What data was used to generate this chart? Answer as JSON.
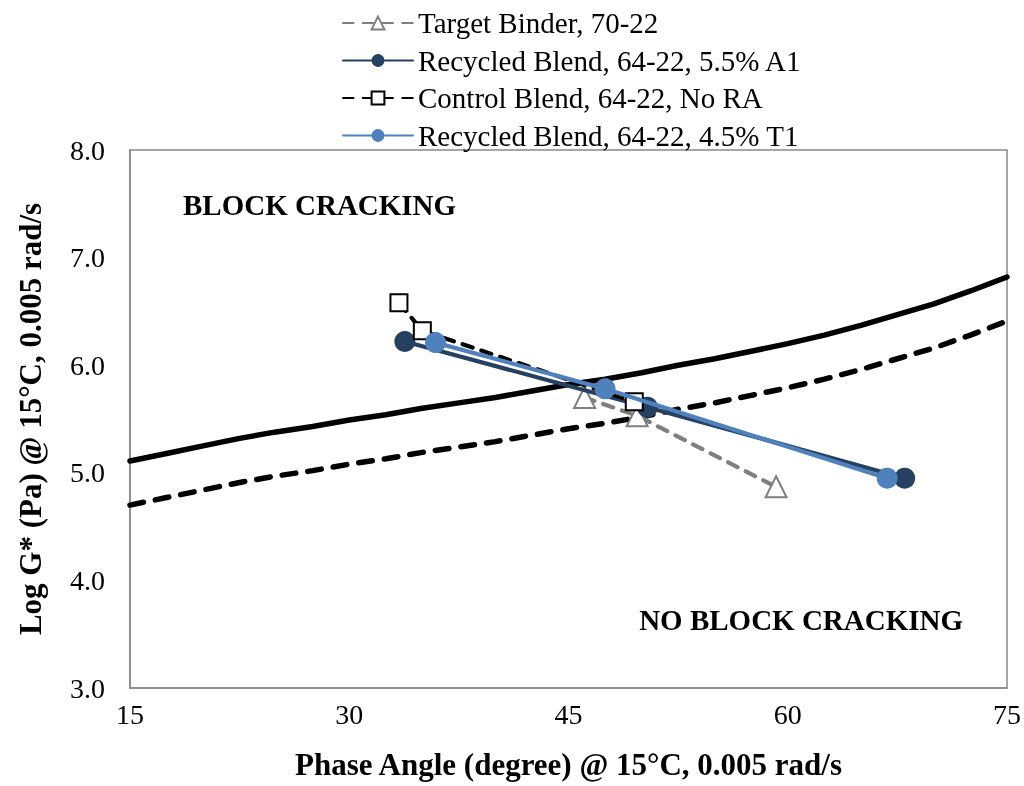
{
  "chart_data": {
    "type": "line",
    "xlabel": "Phase Angle (degree) @ 15°C, 0.005 rad/s",
    "ylabel": "Log G* (Pa) @ 15°C, 0.005 rad/s",
    "xlim": [
      15,
      75
    ],
    "xticks": [
      15,
      30,
      45,
      60,
      75
    ],
    "ylim": [
      3,
      8
    ],
    "yticks": [
      {
        "value": 3,
        "label": "3.0"
      },
      {
        "value": 4,
        "label": "4.0"
      },
      {
        "value": 5,
        "label": "5.0"
      },
      {
        "value": 6,
        "label": "6.0"
      },
      {
        "value": 7,
        "label": "7.0"
      },
      {
        "value": 8,
        "label": "8.0"
      }
    ],
    "grid": false,
    "legend": "top",
    "annotations": [
      "BLOCK CRACKING",
      "NO BLOCK CRACKING"
    ],
    "series": [
      {
        "color": "#000000",
        "marker": "none",
        "line_style": "solid",
        "x": [
          15,
          17.5,
          20,
          22.5,
          25,
          27.5,
          30,
          32.5,
          35,
          37.5,
          40,
          42.5,
          45,
          47.5,
          50,
          52.5,
          55,
          57.5,
          60,
          62.5,
          65,
          67.5,
          70,
          72.5,
          75
        ],
        "values": [
          5.11,
          5.18,
          5.25,
          5.32,
          5.38,
          5.43,
          5.49,
          5.54,
          5.6,
          5.65,
          5.7,
          5.76,
          5.82,
          5.87,
          5.93,
          6.0,
          6.06,
          6.13,
          6.2,
          6.28,
          6.37,
          6.47,
          6.57,
          6.69,
          6.82
        ]
      },
      {
        "color": "#000000",
        "marker": "none",
        "line_style": "dashed",
        "x": [
          15,
          17.5,
          20,
          22.5,
          25,
          27.5,
          30,
          32.5,
          35,
          37.5,
          40,
          42.5,
          45,
          47.5,
          50,
          52.5,
          55,
          57.5,
          60,
          62.5,
          65,
          67.5,
          70,
          72.5,
          75
        ],
        "values": [
          4.7,
          4.77,
          4.84,
          4.91,
          4.97,
          5.02,
          5.08,
          5.13,
          5.19,
          5.24,
          5.29,
          5.35,
          5.41,
          5.46,
          5.52,
          5.59,
          5.65,
          5.72,
          5.79,
          5.87,
          5.96,
          6.06,
          6.16,
          6.28,
          6.41
        ]
      },
      {
        "name": "Target Binder, 70-22",
        "color": "#7f7f7f",
        "marker": "triangle",
        "line_style": "dashed",
        "x": [
          46.1,
          49.7,
          59.2
        ],
        "values": [
          5.7,
          5.53,
          4.87
        ]
      },
      {
        "name": "Recycled Blend, 64-22, 5.5% A1",
        "color": "#254061",
        "marker": "circle",
        "line_style": "solid",
        "x": [
          33.8,
          50.4,
          68.0
        ],
        "values": [
          6.22,
          5.61,
          4.95
        ]
      },
      {
        "name": "Control Blend, 64-22, No RA",
        "color": "#000000",
        "marker": "square",
        "line_style": "dashed",
        "x": [
          33.4,
          35.0,
          49.5
        ],
        "values": [
          6.58,
          6.32,
          5.66
        ]
      },
      {
        "name": "Recycled Blend, 64-22, 4.5% T1",
        "color": "#4f81bd",
        "marker": "circle",
        "line_style": "solid",
        "x": [
          35.9,
          47.5,
          66.8
        ],
        "values": [
          6.21,
          5.78,
          4.95
        ]
      }
    ]
  }
}
